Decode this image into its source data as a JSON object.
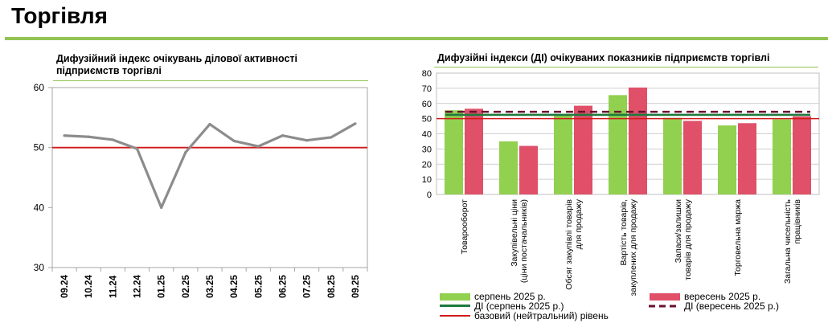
{
  "page": {
    "title": "Торгівля"
  },
  "colors": {
    "green": "#92d050",
    "red": "#e05068",
    "dark_green": "#1f7a3e",
    "maroon": "#6b1030",
    "ref_line": "#d01818",
    "grey_line": "#8c8c8c"
  },
  "chart_data": [
    {
      "type": "line",
      "title": "Дифузійний індекс очікувань ділової активності підприємств торгівлі",
      "categories": [
        "09.24",
        "10.24",
        "11.24",
        "12.24",
        "01.25",
        "02.25",
        "03.25",
        "04.25",
        "05.25",
        "06.25",
        "07.25",
        "08.25",
        "09.25"
      ],
      "values": [
        52.0,
        51.8,
        51.3,
        49.8,
        40.0,
        49.2,
        53.9,
        51.1,
        50.2,
        52.0,
        51.2,
        51.7,
        54.0
      ],
      "reference_line": 50,
      "ylim": [
        30,
        60
      ],
      "yticks": [
        "30",
        "40",
        "50",
        "60"
      ],
      "xlabel": "",
      "ylabel": ""
    },
    {
      "type": "bar",
      "title": "Дифузійні індекси (ДІ) очікуваних показників підприємств торгівлі",
      "categories": [
        "Товарооборот",
        "Закупівельні ціни (ціни постачальників)",
        "Обсяг закупівлі товарів для продажу",
        "Вартість товарів, закуплених для продажу",
        "Запаси/залишки товарів для продажу",
        "Торговельна маржа",
        "Загальна чисельність працівників"
      ],
      "category_lines": [
        [
          "Товарооборот"
        ],
        [
          "Закупівельні ціни",
          "(ціни постачальників)"
        ],
        [
          "Обсяг закупівлі товарів",
          "для продажу"
        ],
        [
          "Вартість товарів,",
          "закуплених для продажу"
        ],
        [
          "Запаси/залишки",
          "товарів для продажу"
        ],
        [
          "Торговельна маржа"
        ],
        [
          "Загальна чисельність",
          "працівників"
        ]
      ],
      "series": [
        {
          "name": "серпень 2025 р.",
          "values": [
            55.5,
            35,
            52.5,
            65.5,
            50.5,
            45.5,
            49.5
          ]
        },
        {
          "name": "вересень 2025 р.",
          "values": [
            56.5,
            32,
            58.5,
            70.5,
            48.5,
            47,
            51.5
          ]
        }
      ],
      "index_lines": [
        {
          "name": "ДІ (серпень 2025 р.)",
          "value": 52.5
        },
        {
          "name": "ДІ (вересень 2025 р.)",
          "value": 54.5
        }
      ],
      "reference_line": {
        "name": "базовий (нейтральний) рівень",
        "value": 50
      },
      "ylim": [
        0,
        80
      ],
      "yticks": [
        "0",
        "10",
        "20",
        "30",
        "40",
        "50",
        "60",
        "70",
        "80"
      ]
    }
  ]
}
